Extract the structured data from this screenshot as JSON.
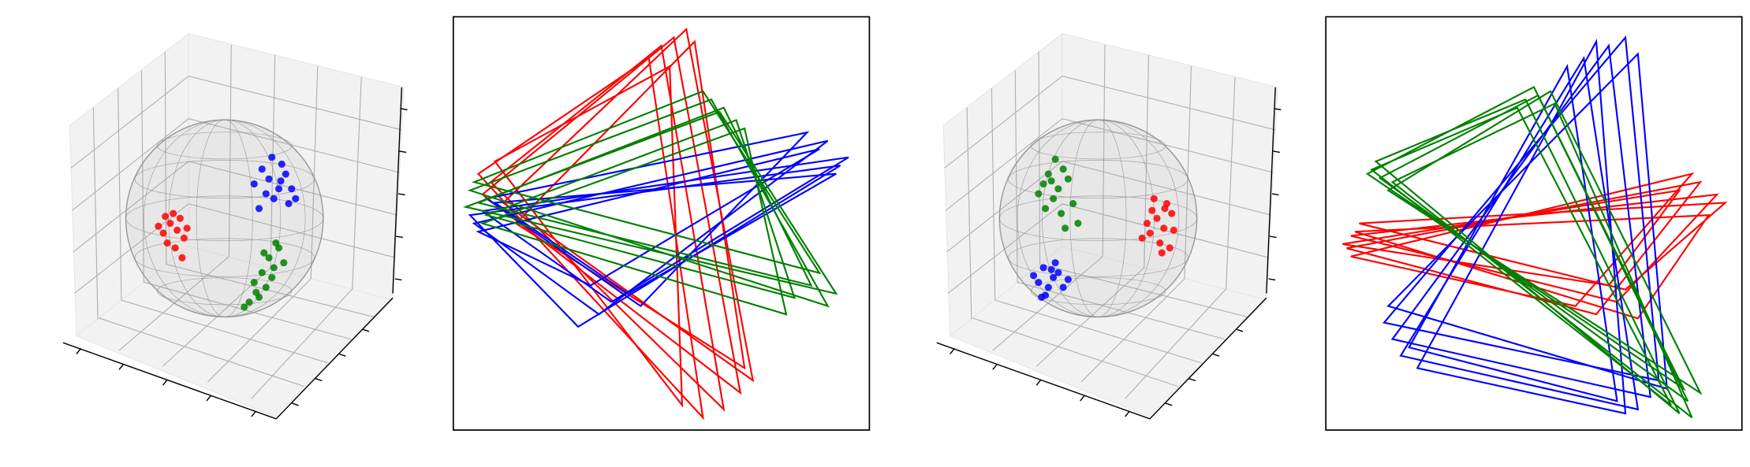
{
  "chart_data": [
    {
      "type": "scatter3d",
      "xlim": [
        -1,
        1
      ],
      "ylim": [
        -1,
        1
      ],
      "series": [
        {
          "color": "#ff0000",
          "x": [
            -0.55,
            -0.48,
            -0.62,
            -0.41,
            -0.52,
            -0.58,
            -0.45,
            -0.67,
            -0.38,
            -0.5,
            -0.6,
            -0.43
          ],
          "y": [
            -0.05,
            -0.12,
            -0.15,
            -0.2,
            0.05,
            -0.25,
            0.0,
            -0.08,
            -0.1,
            -0.3,
            0.02,
            -0.4
          ]
        },
        {
          "color": "#0000ff",
          "x": [
            0.45,
            0.55,
            0.62,
            0.38,
            0.5,
            0.68,
            0.42,
            0.58,
            0.3,
            0.65,
            0.48,
            0.72,
            0.35,
            0.57
          ],
          "y": [
            0.4,
            0.3,
            0.45,
            0.5,
            0.2,
            0.3,
            0.25,
            0.55,
            0.35,
            0.15,
            0.62,
            0.2,
            0.1,
            0.38
          ]
        },
        {
          "color": "#008000",
          "x": [
            0.45,
            0.5,
            0.38,
            0.55,
            0.3,
            0.42,
            0.6,
            0.35,
            0.25,
            0.48,
            0.32,
            0.2,
            0.52,
            0.4
          ],
          "y": [
            -0.4,
            -0.5,
            -0.55,
            -0.3,
            -0.65,
            -0.7,
            -0.45,
            -0.8,
            -0.85,
            -0.6,
            -0.75,
            -0.9,
            -0.25,
            -0.35
          ]
        }
      ]
    },
    {
      "type": "triangles",
      "xlim": [
        0,
        1
      ],
      "ylim": [
        0,
        1
      ],
      "series": [
        {
          "color": "#ff0000",
          "triangles": [
            [
              0.07,
              0.57,
              0.53,
              0.95,
              0.69,
              0.09
            ],
            [
              0.09,
              0.6,
              0.5,
              0.93,
              0.65,
              0.05
            ],
            [
              0.12,
              0.55,
              0.56,
              0.97,
              0.72,
              0.12
            ],
            [
              0.06,
              0.62,
              0.47,
              0.9,
              0.6,
              0.03
            ],
            [
              0.15,
              0.5,
              0.58,
              0.94,
              0.7,
              0.15
            ],
            [
              0.1,
              0.65,
              0.52,
              0.88,
              0.55,
              0.06
            ]
          ]
        },
        {
          "color": "#0000ff",
          "triangles": [
            [
              0.07,
              0.53,
              0.95,
              0.66,
              0.38,
              0.31
            ],
            [
              0.05,
              0.5,
              0.9,
              0.7,
              0.35,
              0.28
            ],
            [
              0.1,
              0.55,
              0.92,
              0.62,
              0.42,
              0.33
            ],
            [
              0.06,
              0.48,
              0.88,
              0.68,
              0.33,
              0.35
            ],
            [
              0.08,
              0.56,
              0.85,
              0.72,
              0.45,
              0.3
            ],
            [
              0.04,
              0.52,
              0.93,
              0.64,
              0.3,
              0.25
            ]
          ]
        },
        {
          "color": "#008000",
          "triangles": [
            [
              0.06,
              0.55,
              0.65,
              0.78,
              0.86,
              0.35
            ],
            [
              0.04,
              0.58,
              0.62,
              0.8,
              0.9,
              0.3
            ],
            [
              0.08,
              0.52,
              0.68,
              0.75,
              0.82,
              0.32
            ],
            [
              0.05,
              0.6,
              0.6,
              0.82,
              0.88,
              0.38
            ],
            [
              0.07,
              0.5,
              0.7,
              0.73,
              0.8,
              0.28
            ],
            [
              0.03,
              0.54,
              0.64,
              0.77,
              0.92,
              0.33
            ]
          ]
        }
      ]
    },
    {
      "type": "scatter3d",
      "xlim": [
        -1,
        1
      ],
      "ylim": [
        -1,
        1
      ],
      "series": [
        {
          "color": "#008000",
          "x": [
            -0.55,
            -0.45,
            -0.6,
            -0.4,
            -0.5,
            -0.65,
            -0.35,
            -0.48,
            -0.3,
            -0.58,
            -0.42,
            -0.52,
            -0.25,
            -0.38
          ],
          "y": [
            0.45,
            0.3,
            0.35,
            0.5,
            0.2,
            0.25,
            0.4,
            0.6,
            0.15,
            0.1,
            0.05,
            0.38,
            -0.05,
            -0.1
          ]
        },
        {
          "color": "#ff0000",
          "x": [
            0.55,
            0.62,
            0.48,
            0.7,
            0.58,
            0.65,
            0.5,
            0.72,
            0.45,
            0.6,
            0.68,
            0.52,
            0.4,
            0.63
          ],
          "y": [
            0.0,
            -0.1,
            -0.15,
            0.05,
            -0.25,
            0.15,
            0.08,
            -0.12,
            -0.05,
            -0.35,
            -0.3,
            0.2,
            -0.2,
            0.1
          ]
        },
        {
          "color": "#0000ff",
          "x": [
            -0.6,
            -0.5,
            -0.65,
            -0.45,
            -0.55,
            -0.7,
            -0.4,
            -0.58,
            -0.48,
            -0.62,
            -0.35,
            -0.52
          ],
          "y": [
            -0.5,
            -0.6,
            -0.65,
            -0.55,
            -0.7,
            -0.58,
            -0.7,
            -0.78,
            -0.45,
            -0.8,
            -0.62,
            -0.52
          ]
        }
      ]
    },
    {
      "type": "triangles",
      "xlim": [
        0,
        1
      ],
      "ylim": [
        0,
        1
      ],
      "series": [
        {
          "color": "#ff0000",
          "triangles": [
            [
              0.06,
              0.47,
              0.94,
              0.57,
              0.7,
              0.31
            ],
            [
              0.05,
              0.44,
              0.9,
              0.6,
              0.65,
              0.28
            ],
            [
              0.08,
              0.5,
              0.96,
              0.55,
              0.72,
              0.34
            ],
            [
              0.06,
              0.42,
              0.88,
              0.62,
              0.6,
              0.3
            ],
            [
              0.07,
              0.48,
              0.92,
              0.52,
              0.75,
              0.27
            ],
            [
              0.04,
              0.45,
              0.85,
              0.58,
              0.68,
              0.35
            ]
          ]
        },
        {
          "color": "#0000ff",
          "triangles": [
            [
              0.68,
              0.93,
              0.16,
              0.22,
              0.78,
              0.08
            ],
            [
              0.62,
              0.9,
              0.18,
              0.18,
              0.75,
              0.05
            ],
            [
              0.72,
              0.95,
              0.14,
              0.26,
              0.8,
              0.12
            ],
            [
              0.58,
              0.88,
              0.2,
              0.2,
              0.7,
              0.07
            ],
            [
              0.75,
              0.91,
              0.15,
              0.3,
              0.82,
              0.1
            ],
            [
              0.65,
              0.94,
              0.22,
              0.15,
              0.72,
              0.04
            ]
          ]
        },
        {
          "color": "#008000",
          "triangles": [
            [
              0.13,
              0.61,
              0.51,
              0.81,
              0.87,
              0.07
            ],
            [
              0.12,
              0.65,
              0.48,
              0.8,
              0.85,
              0.04
            ],
            [
              0.15,
              0.58,
              0.54,
              0.82,
              0.9,
              0.09
            ],
            [
              0.11,
              0.63,
              0.46,
              0.78,
              0.83,
              0.06
            ],
            [
              0.16,
              0.6,
              0.55,
              0.79,
              0.88,
              0.03
            ],
            [
              0.1,
              0.62,
              0.5,
              0.83,
              0.86,
              0.1
            ]
          ]
        }
      ]
    }
  ]
}
